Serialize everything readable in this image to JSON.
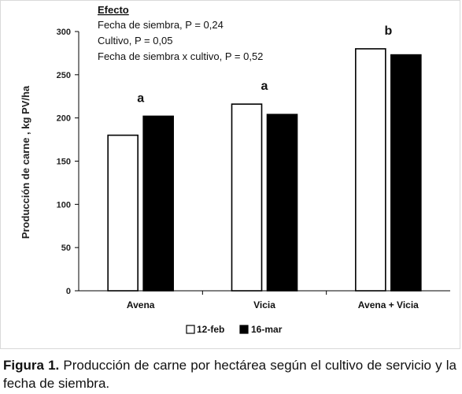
{
  "chart_data": {
    "type": "bar",
    "categories": [
      "Avena",
      "Vicia",
      "Avena + Vicia"
    ],
    "series": [
      {
        "name": "12-feb",
        "values": [
          180,
          216,
          280
        ],
        "fill": "#ffffff",
        "stroke": "#000000"
      },
      {
        "name": "16-mar",
        "values": [
          202,
          204,
          273
        ],
        "fill": "#000000",
        "stroke": "#000000"
      }
    ],
    "title": "",
    "xlabel": "",
    "ylabel": "Producción de carne ,  kg PV/ha",
    "ylim": [
      0,
      300
    ],
    "yticks": [
      0,
      50,
      100,
      150,
      200,
      250,
      300
    ],
    "group_letters": [
      "a",
      "a",
      "b"
    ],
    "legend_position": "bottom",
    "grid": false,
    "annotation": {
      "heading": "Efecto",
      "lines": [
        "Fecha de siembra, P = 0,24",
        "Cultivo, P = 0,05",
        "Fecha de siembra x cultivo, P = 0,52"
      ]
    }
  },
  "caption": {
    "label": "Figura 1.",
    "text": " Producción de carne por hectárea según el cultivo de servicio y la fecha de siembra."
  }
}
